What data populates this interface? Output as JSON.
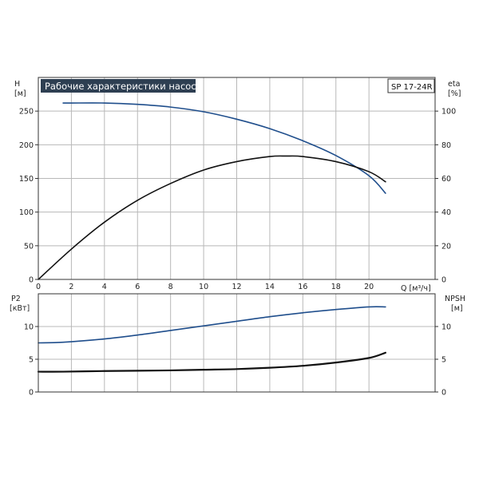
{
  "chart_data": [
    {
      "type": "line",
      "title": "Рабочие характеристики насоса",
      "model": "SP 17-24R",
      "xlabel": "Q [м³/ч]",
      "ylabel_left": {
        "name": "H",
        "unit": "[м]"
      },
      "ylabel_right": {
        "name": "eta",
        "unit": "[%]"
      },
      "xlim": [
        0,
        24
      ],
      "ylim_left": [
        0,
        300
      ],
      "ylim_right": [
        0,
        120
      ],
      "x_ticks": [
        "0",
        "2",
        "4",
        "6",
        "8",
        "10",
        "12",
        "14",
        "16",
        "18",
        "20"
      ],
      "y_left_ticks": [
        "0",
        "50",
        "100",
        "150",
        "200",
        "250"
      ],
      "y_right_ticks": [
        "0",
        "20",
        "40",
        "60",
        "80",
        "100"
      ],
      "grid": true,
      "series": [
        {
          "axis": "left",
          "color": "#1f4e8c",
          "x": [
            1.5,
            2,
            4,
            6,
            8,
            10,
            12,
            14,
            16,
            18,
            20,
            21
          ],
          "y": [
            262,
            262,
            262,
            260,
            256,
            249,
            238,
            224,
            206,
            184,
            154,
            128
          ]
        },
        {
          "axis": "right",
          "color": "#111111",
          "x": [
            0,
            2,
            4,
            6,
            8,
            10,
            12,
            14,
            15,
            16,
            18,
            20,
            21
          ],
          "y": [
            0,
            18,
            34,
            47,
            57,
            65,
            70,
            73,
            73.3,
            73,
            70,
            64,
            58
          ]
        }
      ]
    },
    {
      "type": "line",
      "ylabel_left": {
        "name": "P2",
        "unit": "[кВт]"
      },
      "ylabel_right": {
        "name": "NPSH",
        "unit": "[м]"
      },
      "xlim": [
        0,
        24
      ],
      "ylim_left": [
        0,
        15
      ],
      "ylim_right": [
        0,
        15
      ],
      "y_left_ticks": [
        "0",
        "5",
        "10"
      ],
      "y_right_ticks": [
        "0",
        "5",
        "10"
      ],
      "grid": true,
      "series": [
        {
          "axis": "left",
          "color": "#1f4e8c",
          "x": [
            0,
            1.5,
            4,
            6,
            8,
            10,
            12,
            14,
            16,
            18,
            20,
            21
          ],
          "y": [
            7.5,
            7.6,
            8.1,
            8.7,
            9.4,
            10.1,
            10.8,
            11.5,
            12.1,
            12.6,
            13.0,
            13.0
          ]
        },
        {
          "axis": "right",
          "color": "#111111",
          "x": [
            0,
            1.5,
            4,
            6,
            8,
            10,
            12,
            14,
            16,
            18,
            20,
            21
          ],
          "y": [
            3.1,
            3.1,
            3.2,
            3.25,
            3.3,
            3.4,
            3.5,
            3.7,
            4.0,
            4.5,
            5.2,
            6.0
          ]
        }
      ]
    }
  ]
}
